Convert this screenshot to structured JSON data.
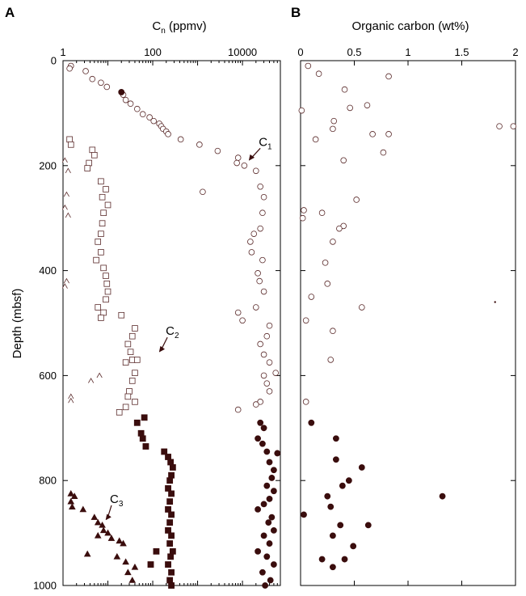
{
  "chart_data": [
    {
      "panel": "A",
      "type": "scatter",
      "title": "C",
      "title_sub": "n",
      "title_unit": " (ppmv)",
      "ylabel": "Depth (mbsf)",
      "x_scale": "log",
      "xlim": [
        1,
        70000
      ],
      "ylim": [
        1000,
        0
      ],
      "xticks": [
        1,
        100,
        10000
      ],
      "xtick_labels": [
        "1",
        "100",
        "10000"
      ],
      "yticks": [
        0,
        200,
        400,
        600,
        800,
        1000
      ],
      "ytick_labels": [
        "0",
        "200",
        "400",
        "600",
        "800",
        "1000"
      ],
      "annotations": [
        {
          "text": "C",
          "sub": "1",
          "depth": 190,
          "x": 14000
        },
        {
          "text": "C",
          "sub": "2",
          "depth": 555,
          "x": 140
        },
        {
          "text": "C",
          "sub": "3",
          "depth": 875,
          "x": 9
        }
      ],
      "series": [
        {
          "marker": "circle-open",
          "points": [
            [
              1.5,
              10
            ],
            [
              1.4,
              15
            ],
            [
              3.2,
              20
            ],
            [
              4.5,
              35
            ],
            [
              7,
              42
            ],
            [
              9.5,
              50
            ],
            [
              22,
              65
            ],
            [
              25,
              75
            ],
            [
              32,
              82
            ],
            [
              45,
              92
            ],
            [
              60,
              102
            ],
            [
              85,
              108
            ],
            [
              105,
              115
            ],
            [
              140,
              120
            ],
            [
              155,
              125
            ],
            [
              170,
              130
            ],
            [
              200,
              135
            ],
            [
              220,
              140
            ],
            [
              420,
              150
            ],
            [
              1100,
              160
            ],
            [
              2800,
              172
            ],
            [
              8000,
              185
            ],
            [
              7500,
              195
            ],
            [
              11000,
              200
            ],
            [
              1300,
              250
            ],
            [
              20000,
              210
            ],
            [
              25000,
              240
            ],
            [
              30000,
              260
            ],
            [
              28000,
              290
            ],
            [
              25000,
              320
            ],
            [
              18000,
              330
            ],
            [
              15000,
              345
            ],
            [
              16000,
              365
            ],
            [
              28000,
              380
            ],
            [
              22000,
              405
            ],
            [
              24000,
              420
            ],
            [
              30000,
              440
            ],
            [
              20000,
              470
            ],
            [
              8000,
              480
            ],
            [
              10000,
              495
            ],
            [
              40000,
              505
            ],
            [
              35000,
              525
            ],
            [
              25000,
              540
            ],
            [
              30000,
              560
            ],
            [
              40000,
              575
            ],
            [
              30000,
              600
            ],
            [
              55000,
              595
            ],
            [
              35000,
              615
            ],
            [
              40000,
              630
            ],
            [
              25000,
              650
            ],
            [
              20000,
              655
            ],
            [
              8000,
              665
            ]
          ]
        },
        {
          "marker": "circle-filled",
          "points": [
            [
              20,
              60
            ],
            [
              25000,
              690
            ],
            [
              30000,
              700
            ],
            [
              22000,
              720
            ],
            [
              28000,
              730
            ],
            [
              35000,
              745
            ],
            [
              60000,
              748
            ],
            [
              40000,
              765
            ],
            [
              50000,
              780
            ],
            [
              45000,
              795
            ],
            [
              35000,
              810
            ],
            [
              50000,
              820
            ],
            [
              40000,
              835
            ],
            [
              30000,
              845
            ],
            [
              22000,
              855
            ],
            [
              45000,
              870
            ],
            [
              38000,
              880
            ],
            [
              50000,
              895
            ],
            [
              30000,
              905
            ],
            [
              40000,
              920
            ],
            [
              22000,
              935
            ],
            [
              35000,
              945
            ],
            [
              50000,
              960
            ],
            [
              28000,
              975
            ],
            [
              42000,
              990
            ],
            [
              32000,
              1000
            ]
          ]
        },
        {
          "marker": "square-open",
          "points": [
            [
              1.4,
              150
            ],
            [
              1.5,
              160
            ],
            [
              4.5,
              170
            ],
            [
              5,
              180
            ],
            [
              3.8,
              195
            ],
            [
              3.5,
              205
            ],
            [
              7,
              230
            ],
            [
              9,
              245
            ],
            [
              7.5,
              260
            ],
            [
              10,
              275
            ],
            [
              8,
              290
            ],
            [
              7.5,
              310
            ],
            [
              7,
              330
            ],
            [
              6,
              345
            ],
            [
              7,
              365
            ],
            [
              5.5,
              380
            ],
            [
              8,
              395
            ],
            [
              9,
              410
            ],
            [
              9.5,
              425
            ],
            [
              10,
              440
            ],
            [
              9,
              455
            ],
            [
              6,
              470
            ],
            [
              8,
              480
            ],
            [
              7,
              490
            ],
            [
              20,
              485
            ],
            [
              40,
              510
            ],
            [
              35,
              525
            ],
            [
              28,
              540
            ],
            [
              32,
              555
            ],
            [
              35,
              570
            ],
            [
              25,
              575
            ],
            [
              45,
              570
            ],
            [
              40,
              595
            ],
            [
              35,
              610
            ],
            [
              30,
              630
            ],
            [
              28,
              640
            ],
            [
              40,
              650
            ],
            [
              25,
              660
            ],
            [
              18,
              670
            ]
          ]
        },
        {
          "marker": "square-filled",
          "points": [
            [
              65,
              680
            ],
            [
              45,
              690
            ],
            [
              55,
              710
            ],
            [
              60,
              720
            ],
            [
              70,
              735
            ],
            [
              180,
              745
            ],
            [
              220,
              755
            ],
            [
              250,
              765
            ],
            [
              280,
              775
            ],
            [
              260,
              790
            ],
            [
              240,
              800
            ],
            [
              220,
              815
            ],
            [
              260,
              825
            ],
            [
              240,
              840
            ],
            [
              220,
              855
            ],
            [
              260,
              865
            ],
            [
              240,
              880
            ],
            [
              220,
              895
            ],
            [
              260,
              905
            ],
            [
              240,
              920
            ],
            [
              280,
              935
            ],
            [
              250,
              945
            ],
            [
              220,
              960
            ],
            [
              260,
              975
            ],
            [
              240,
              990
            ],
            [
              260,
              1000
            ],
            [
              120,
              935
            ],
            [
              90,
              960
            ]
          ]
        },
        {
          "marker": "triangle-open",
          "points": [
            [
              1.1,
              190
            ],
            [
              1.3,
              210
            ],
            [
              1.2,
              255
            ],
            [
              1.1,
              280
            ],
            [
              1.3,
              295
            ],
            [
              1.2,
              420
            ],
            [
              1.1,
              430
            ],
            [
              4.2,
              610
            ],
            [
              6.5,
              600
            ],
            [
              1.5,
              640
            ],
            [
              1.5,
              648
            ]
          ]
        },
        {
          "marker": "triangle-filled",
          "points": [
            [
              1.5,
              825
            ],
            [
              1.8,
              830
            ],
            [
              1.5,
              840
            ],
            [
              1.6,
              850
            ],
            [
              2.8,
              855
            ],
            [
              5,
              870
            ],
            [
              6,
              880
            ],
            [
              7.5,
              885
            ],
            [
              8,
              895
            ],
            [
              6,
              905
            ],
            [
              10,
              900
            ],
            [
              12,
              910
            ],
            [
              18,
              915
            ],
            [
              22,
              920
            ],
            [
              3.5,
              940
            ],
            [
              16,
              945
            ],
            [
              25,
              955
            ],
            [
              40,
              965
            ],
            [
              28,
              975
            ],
            [
              35,
              990
            ]
          ]
        }
      ]
    },
    {
      "panel": "B",
      "type": "scatter",
      "title": "Organic carbon (wt%)",
      "xlim": [
        0,
        2
      ],
      "ylim": [
        1000,
        0
      ],
      "xticks": [
        0,
        0.5,
        1,
        1.5,
        2
      ],
      "xtick_labels": [
        "0",
        "0.5",
        "1",
        "1.5",
        "2"
      ],
      "yticks": [
        0,
        200,
        400,
        600,
        800,
        1000
      ],
      "series": [
        {
          "marker": "circle-open",
          "points": [
            [
              0.07,
              10
            ],
            [
              0.82,
              30
            ],
            [
              0.17,
              25
            ],
            [
              0.41,
              55
            ],
            [
              0.62,
              85
            ],
            [
              0.46,
              90
            ],
            [
              0.01,
              95
            ],
            [
              0.31,
              115
            ],
            [
              0.3,
              130
            ],
            [
              0.67,
              140
            ],
            [
              0.82,
              140
            ],
            [
              1.85,
              125
            ],
            [
              1.98,
              125
            ],
            [
              0.14,
              150
            ],
            [
              0.77,
              175
            ],
            [
              0.4,
              190
            ],
            [
              0.52,
              265
            ],
            [
              0.03,
              285
            ],
            [
              0.2,
              290
            ],
            [
              0.02,
              300
            ],
            [
              0.4,
              315
            ],
            [
              0.36,
              320
            ],
            [
              0.3,
              345
            ],
            [
              0.23,
              385
            ],
            [
              0.25,
              425
            ],
            [
              0.1,
              450
            ],
            [
              0.57,
              470
            ],
            [
              0.05,
              495
            ],
            [
              0.3,
              515
            ],
            [
              0.28,
              570
            ],
            [
              0.05,
              650
            ]
          ]
        },
        {
          "marker": "circle-filled",
          "points": [
            [
              0.1,
              690
            ],
            [
              0.33,
              720
            ],
            [
              0.33,
              760
            ],
            [
              0.57,
              775
            ],
            [
              0.45,
              800
            ],
            [
              0.39,
              810
            ],
            [
              0.25,
              830
            ],
            [
              1.32,
              830
            ],
            [
              0.28,
              850
            ],
            [
              0.03,
              865
            ],
            [
              0.37,
              885
            ],
            [
              0.63,
              885
            ],
            [
              0.3,
              905
            ],
            [
              0.2,
              950
            ],
            [
              0.41,
              950
            ],
            [
              0.49,
              925
            ],
            [
              0.3,
              965
            ]
          ]
        },
        {
          "marker": "dot",
          "points": [
            [
              1.81,
              460
            ]
          ]
        }
      ]
    }
  ]
}
